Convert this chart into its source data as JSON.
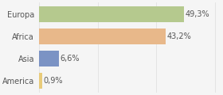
{
  "categories": [
    "Europa",
    "Africa",
    "Asia",
    "America"
  ],
  "values": [
    49.3,
    43.2,
    6.6,
    0.9
  ],
  "labels": [
    "49,3%",
    "43,2%",
    "6,6%",
    "0,9%"
  ],
  "bar_colors": [
    "#b5c98e",
    "#e8b88a",
    "#7b93c4",
    "#e8cb7a"
  ],
  "background_color": "#f5f5f5",
  "xlim": [
    0,
    62
  ],
  "bar_height": 0.72,
  "label_fontsize": 7,
  "tick_fontsize": 7,
  "figsize": [
    2.8,
    1.2
  ],
  "dpi": 100
}
